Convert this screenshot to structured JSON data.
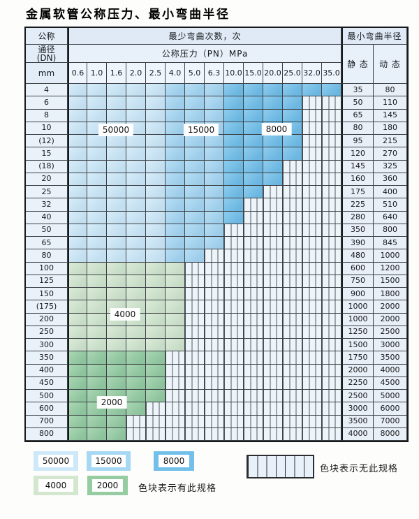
{
  "title": "金属软管公称压力、最小弯曲半径",
  "header": {
    "dn_top": "公称",
    "dn_mid1": "通径",
    "dn_mid2": "(DN)",
    "dn_unit": "mm",
    "bend_times_label": "最少弯曲次数，次",
    "pressure_label": "公称压力（PN）MPa",
    "radius_label": "最小弯曲半径",
    "static_label": "静 态",
    "dynamic_label": "动 态",
    "pressure_values": [
      "0.6",
      "1.0",
      "1.6",
      "2.0",
      "2.5",
      "4.0",
      "5.0",
      "6.3",
      "10.0",
      "15.0",
      "20.0",
      "25.0",
      "32.0",
      "35.0"
    ]
  },
  "blue_column_grades": [
    "50000",
    "50000",
    "50000",
    "50000",
    "50000",
    "15000",
    "15000",
    "15000",
    "8000",
    "8000",
    "8000",
    "8000",
    "8000",
    "8000"
  ],
  "rows": [
    {
      "dn": "4",
      "band": "blue",
      "spec_cols": 14,
      "static": "35",
      "dynamic": "80"
    },
    {
      "dn": "6",
      "band": "blue",
      "spec_cols": 12,
      "static": "50",
      "dynamic": "110"
    },
    {
      "dn": "8",
      "band": "blue",
      "spec_cols": 12,
      "static": "65",
      "dynamic": "145"
    },
    {
      "dn": "10",
      "band": "blue",
      "spec_cols": 12,
      "static": "80",
      "dynamic": "180"
    },
    {
      "dn": "(12)",
      "band": "blue",
      "spec_cols": 12,
      "static": "95",
      "dynamic": "215"
    },
    {
      "dn": "15",
      "band": "blue",
      "spec_cols": 12,
      "static": "120",
      "dynamic": "270"
    },
    {
      "dn": "(18)",
      "band": "blue",
      "spec_cols": 11,
      "static": "145",
      "dynamic": "325"
    },
    {
      "dn": "20",
      "band": "blue",
      "spec_cols": 11,
      "static": "160",
      "dynamic": "360"
    },
    {
      "dn": "25",
      "band": "blue",
      "spec_cols": 10,
      "static": "175",
      "dynamic": "400"
    },
    {
      "dn": "32",
      "band": "blue",
      "spec_cols": 9,
      "static": "225",
      "dynamic": "510"
    },
    {
      "dn": "40",
      "band": "blue",
      "spec_cols": 9,
      "static": "280",
      "dynamic": "640"
    },
    {
      "dn": "50",
      "band": "blue",
      "spec_cols": 8,
      "static": "350",
      "dynamic": "800"
    },
    {
      "dn": "65",
      "band": "blue",
      "spec_cols": 8,
      "static": "390",
      "dynamic": "845"
    },
    {
      "dn": "80",
      "band": "blue",
      "spec_cols": 7,
      "static": "480",
      "dynamic": "1000"
    },
    {
      "dn": "100",
      "band": "4000",
      "spec_cols": 6,
      "static": "600",
      "dynamic": "1200"
    },
    {
      "dn": "125",
      "band": "4000",
      "spec_cols": 6,
      "static": "750",
      "dynamic": "1500"
    },
    {
      "dn": "150",
      "band": "4000",
      "spec_cols": 6,
      "static": "900",
      "dynamic": "1800"
    },
    {
      "dn": "(175)",
      "band": "4000",
      "spec_cols": 6,
      "static": "1000",
      "dynamic": "2000"
    },
    {
      "dn": "200",
      "band": "4000",
      "spec_cols": 6,
      "static": "1000",
      "dynamic": "2000"
    },
    {
      "dn": "250",
      "band": "4000",
      "spec_cols": 6,
      "static": "1250",
      "dynamic": "2500"
    },
    {
      "dn": "300",
      "band": "4000",
      "spec_cols": 6,
      "static": "1500",
      "dynamic": "3000"
    },
    {
      "dn": "350",
      "band": "2000",
      "spec_cols": 5,
      "static": "1750",
      "dynamic": "3500"
    },
    {
      "dn": "400",
      "band": "2000",
      "spec_cols": 5,
      "static": "2000",
      "dynamic": "4000"
    },
    {
      "dn": "450",
      "band": "2000",
      "spec_cols": 5,
      "static": "2250",
      "dynamic": "4500"
    },
    {
      "dn": "500",
      "band": "2000",
      "spec_cols": 5,
      "static": "2500",
      "dynamic": "5000"
    },
    {
      "dn": "600",
      "band": "2000",
      "spec_cols": 4,
      "static": "3000",
      "dynamic": "6000"
    },
    {
      "dn": "700",
      "band": "2000",
      "spec_cols": 3,
      "static": "3500",
      "dynamic": "7000"
    },
    {
      "dn": "800",
      "band": "2000",
      "spec_cols": 3,
      "static": "4000",
      "dynamic": "8000"
    }
  ],
  "colors": {
    "grade_50000": "#cde9f9",
    "grade_15000": "#a6d7f3",
    "grade_8000": "#72c0ea",
    "grade_4000": "#d2e7ce",
    "grade_2000": "#95cda1",
    "no_spec_bg": "#edf4fa",
    "hatch_line": "#343a40"
  },
  "region_labels": [
    "50000",
    "15000",
    "8000",
    "4000",
    "2000"
  ],
  "legend": {
    "items": [
      {
        "value": "50000",
        "grade": "grade_50000"
      },
      {
        "value": "15000",
        "grade": "grade_15000"
      },
      {
        "value": "8000",
        "grade": "grade_8000"
      },
      {
        "value": "4000",
        "grade": "grade_4000"
      },
      {
        "value": "2000",
        "grade": "grade_2000"
      }
    ],
    "has_spec_text": "色块表示有此规格",
    "no_spec_text": "色块表示无此规格"
  }
}
